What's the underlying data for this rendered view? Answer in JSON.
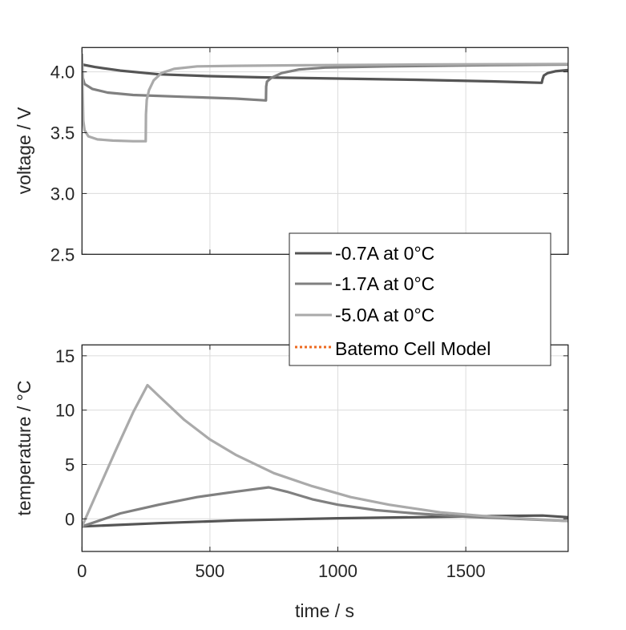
{
  "chart_data": [
    {
      "type": "line",
      "ylabel": "voltage / V",
      "xlim": [
        0,
        1900
      ],
      "ylim": [
        2.5,
        4.2
      ],
      "yticks": [
        "2.5",
        "3.0",
        "3.5",
        "4.0"
      ],
      "ytick_values": [
        2.5,
        3.0,
        3.5,
        4.0
      ],
      "xtick_values": [
        0,
        500,
        1000,
        1500
      ],
      "grid": true,
      "series": [
        {
          "name": "-0.7A at 0°C",
          "color": "#555555",
          "x": [
            0,
            50,
            150,
            300,
            500,
            700,
            1000,
            1300,
            1600,
            1797,
            1800,
            1805,
            1820,
            1850,
            1900
          ],
          "y": [
            4.06,
            4.04,
            4.01,
            3.98,
            3.965,
            3.955,
            3.945,
            3.935,
            3.922,
            3.91,
            3.94,
            3.97,
            3.99,
            4.005,
            4.015
          ]
        },
        {
          "name": "-1.7A at 0°C",
          "color": "#808080",
          "x": [
            0,
            3,
            10,
            40,
            100,
            200,
            400,
            600,
            719,
            720,
            723,
            740,
            780,
            850,
            950,
            1200,
            1600,
            1900
          ],
          "y": [
            4.12,
            3.95,
            3.9,
            3.86,
            3.83,
            3.81,
            3.795,
            3.78,
            3.765,
            3.88,
            3.92,
            3.95,
            3.99,
            4.02,
            4.035,
            4.045,
            4.055,
            4.06
          ]
        },
        {
          "name": "-5.0A at 0°C",
          "color": "#aaaaaa",
          "x": [
            0,
            2,
            5,
            10,
            25,
            60,
            120,
            200,
            249,
            250,
            253,
            262,
            280,
            310,
            360,
            450,
            600,
            900,
            1300,
            1900
          ],
          "y": [
            4.15,
            3.9,
            3.6,
            3.52,
            3.47,
            3.445,
            3.435,
            3.43,
            3.43,
            3.65,
            3.77,
            3.85,
            3.93,
            3.99,
            4.025,
            4.045,
            4.05,
            4.055,
            4.06,
            4.065
          ]
        }
      ]
    },
    {
      "type": "line",
      "xlabel": "time / s",
      "ylabel": "temperature / °C",
      "xlim": [
        0,
        1900
      ],
      "ylim": [
        -3,
        16
      ],
      "xticks": [
        "0",
        "500",
        "1000",
        "1500"
      ],
      "xtick_values": [
        0,
        500,
        1000,
        1500
      ],
      "yticks": [
        "0",
        "5",
        "10",
        "15"
      ],
      "ytick_values": [
        0,
        5,
        10,
        15
      ],
      "grid": true,
      "series": [
        {
          "name": "-0.7A at 0°C",
          "color": "#555555",
          "x": [
            0,
            300,
            600,
            1000,
            1300,
            1600,
            1800,
            1900
          ],
          "y": [
            -0.7,
            -0.4,
            -0.15,
            0.05,
            0.15,
            0.25,
            0.3,
            0.15
          ]
        },
        {
          "name": "-1.7A at 0°C",
          "color": "#808080",
          "x": [
            0,
            150,
            300,
            450,
            600,
            730,
            800,
            900,
            1000,
            1150,
            1300,
            1500,
            1700,
            1900
          ],
          "y": [
            -0.7,
            0.5,
            1.3,
            2.0,
            2.5,
            2.9,
            2.5,
            1.8,
            1.3,
            0.8,
            0.5,
            0.2,
            0.0,
            -0.2
          ]
        },
        {
          "name": "-5.0A at 0°C",
          "color": "#aaaaaa",
          "x": [
            0,
            60,
            130,
            200,
            256,
            300,
            400,
            500,
            600,
            750,
            900,
            1050,
            1200,
            1400,
            1600,
            1750,
            1900
          ],
          "y": [
            -0.7,
            2.5,
            6.2,
            9.8,
            12.3,
            11.3,
            9.1,
            7.3,
            5.9,
            4.2,
            3.0,
            2.0,
            1.3,
            0.6,
            0.2,
            0.0,
            -0.2
          ]
        }
      ]
    }
  ],
  "legend": {
    "placement": "center-right",
    "entries": [
      {
        "label": "-0.7A at 0°C",
        "color": "#555555",
        "style": "solid"
      },
      {
        "label": "-1.7A at 0°C",
        "color": "#808080",
        "style": "solid"
      },
      {
        "label": "-5.0A at 0°C",
        "color": "#aaaaaa",
        "style": "solid"
      },
      {
        "label": "Batemo Cell Model",
        "color": "#ee6a1f",
        "style": "dotted"
      }
    ]
  }
}
